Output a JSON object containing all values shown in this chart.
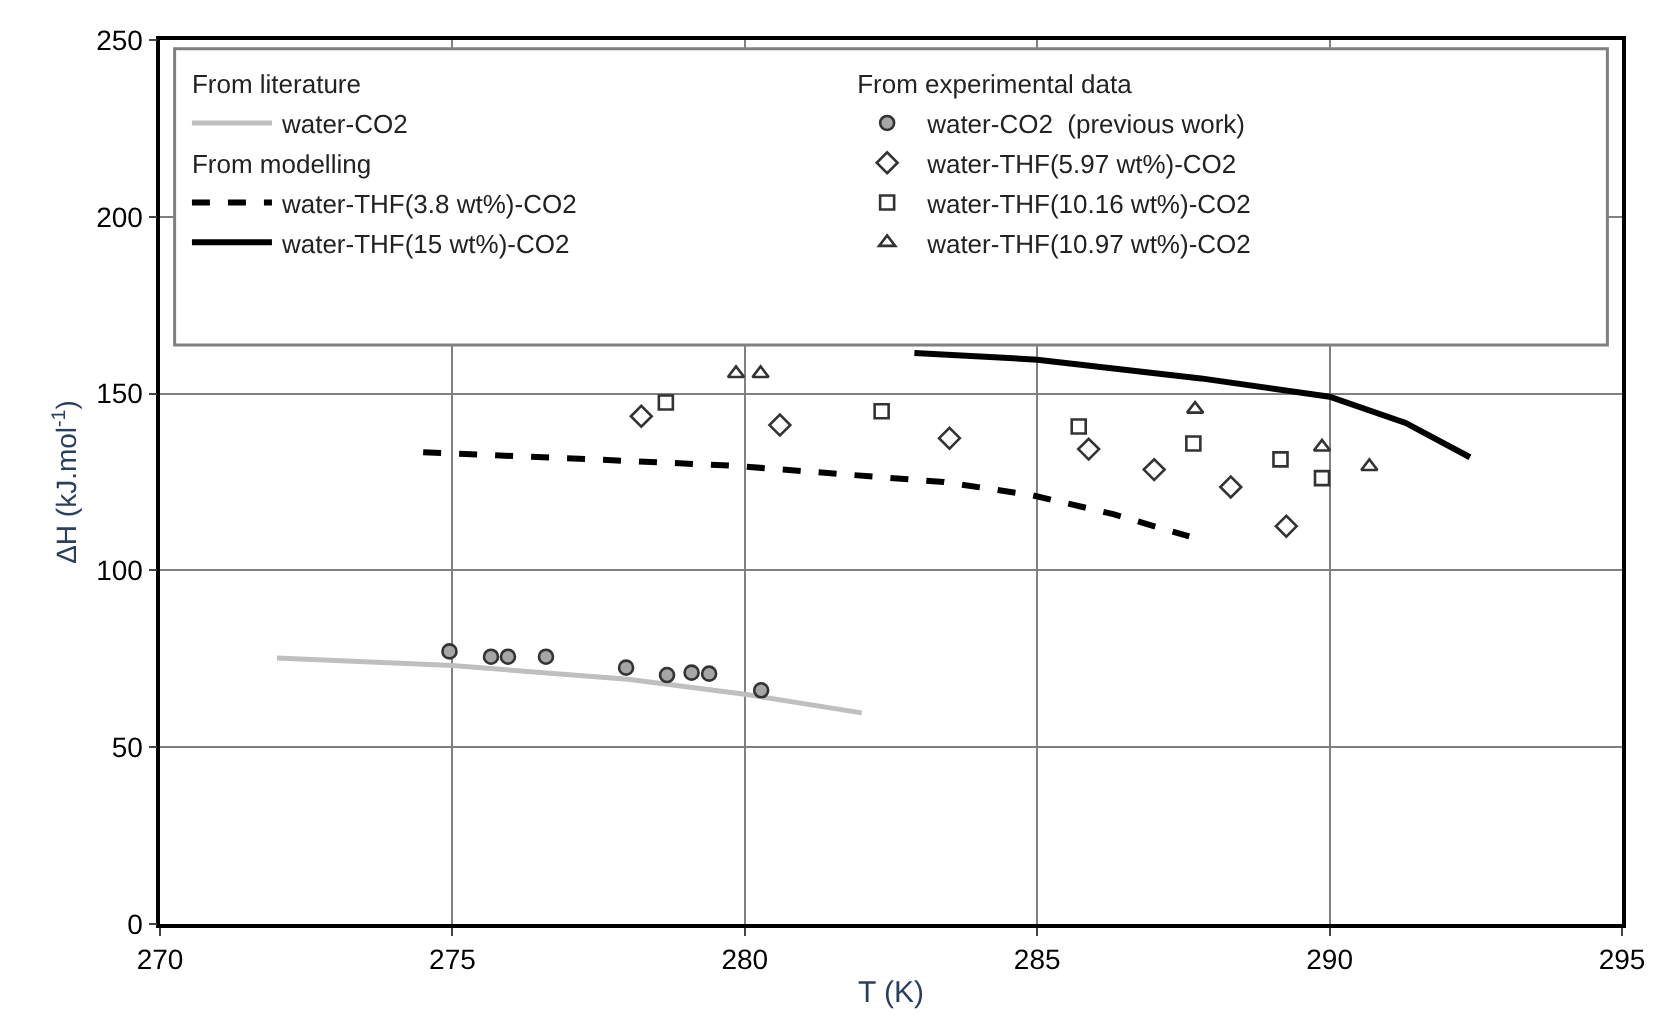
{
  "chart_data": {
    "type": "scatter",
    "xlabel": "T (K)",
    "ylabel": "ΔH (kJ.mol$^{-1}$)",
    "xlim": [
      270,
      295
    ],
    "xticks": [
      270,
      275,
      280,
      285,
      290,
      295
    ],
    "ylim": [
      0,
      250
    ],
    "yticks": [
      0,
      50,
      100,
      150,
      200,
      250
    ],
    "grid": true,
    "legend": "top",
    "annotations": [
      "From literature",
      "From modelling",
      "From experimental data"
    ],
    "series": [
      {
        "name": "water-CO2",
        "type": "line",
        "line_style": "solid",
        "marker": "none",
        "color": "#bfbfbf",
        "x": [
          272.0,
          275.0,
          278.0,
          280.0,
          282.0
        ],
        "values": [
          75.2,
          73.1,
          69.2,
          65.0,
          59.7
        ]
      },
      {
        "name": "water-THF(3.8 wt%)-CO2",
        "type": "line",
        "line_style": "dashed",
        "marker": "none",
        "color": "#000000",
        "x": [
          274.5,
          277.4,
          279.8,
          283.4,
          284.9,
          286.3,
          287.6
        ],
        "values": [
          133.4,
          131.4,
          129.6,
          125.0,
          121.3,
          115.9,
          109.6
        ]
      },
      {
        "name": "water-THF(15 wt%)-CO2",
        "type": "line",
        "line_style": "solid",
        "marker": "none",
        "color": "#000000",
        "x": [
          282.9,
          285.0,
          287.8,
          290.0,
          291.3,
          292.4
        ],
        "values": [
          161.5,
          159.6,
          154.3,
          149.1,
          141.7,
          132.0
        ]
      },
      {
        "name": "water-CO2  (previous work)",
        "marker": "circle",
        "color": "#a6a6a6",
        "x": [
          274.95,
          275.66,
          275.95,
          276.6,
          277.97,
          278.67,
          279.09,
          279.39,
          280.28
        ],
        "values": [
          77.1,
          75.6,
          75.6,
          75.6,
          72.5,
          70.4,
          71.1,
          70.8,
          66.1
        ]
      },
      {
        "name": "water-THF(5.97 wt%)-CO2",
        "marker": "diamond",
        "color": "#ffffff",
        "x": [
          278.23,
          280.6,
          283.5,
          285.88,
          287.0,
          288.31,
          289.26
        ],
        "values": [
          143.6,
          141.1,
          137.4,
          134.3,
          128.5,
          123.6,
          112.5
        ]
      },
      {
        "name": "water-THF(10.16 wt%)-CO2",
        "marker": "square",
        "color": "#ffffff",
        "x": [
          278.65,
          282.34,
          285.71,
          287.67,
          289.16,
          289.87
        ],
        "values": [
          147.5,
          145.0,
          140.7,
          135.9,
          131.4,
          126.1
        ]
      },
      {
        "name": "water-THF(10.97 wt%)-CO2",
        "marker": "triangle",
        "color": "#ffffff",
        "x": [
          279.85,
          280.27,
          287.7,
          289.87,
          290.68
        ],
        "values": [
          155.7,
          155.7,
          145.6,
          134.9,
          129.4
        ]
      }
    ]
  }
}
